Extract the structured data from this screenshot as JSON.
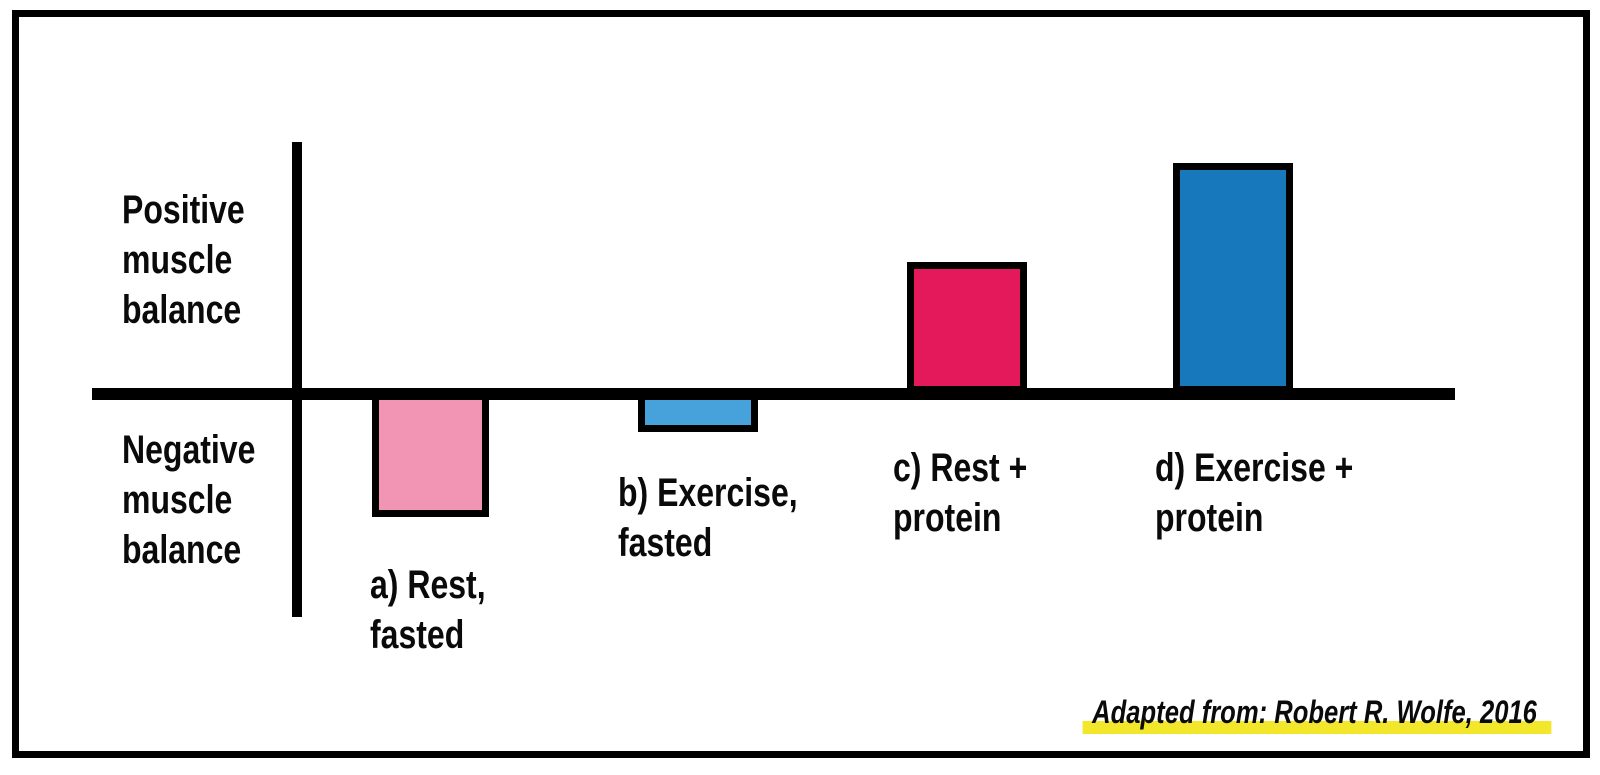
{
  "chart_data": {
    "type": "bar",
    "title": "",
    "orientation": "vertical",
    "baseline": 0,
    "ylim": [
      -0.7,
      1.15
    ],
    "value_scale": "relative units (no numeric ticks shown); tallest bar d = 1.0",
    "grid": false,
    "legend": false,
    "y_axis": {
      "positive_label": "Positive\nmuscle\nbalance",
      "negative_label": "Negative\nmuscle\nbalance"
    },
    "categories": [
      "a) Rest, fasted",
      "b) Exercise, fasted",
      "c) Rest + protein",
      "d) Exercise + protein"
    ],
    "values": [
      -0.54,
      -0.17,
      0.57,
      1.0
    ],
    "bars": [
      {
        "key": "a",
        "label": "a) Rest,\nfasted",
        "value": -0.54,
        "color": "#F294B4"
      },
      {
        "key": "b",
        "label": "b) Exercise,\nfasted",
        "value": -0.17,
        "color": "#47A2DC"
      },
      {
        "key": "c",
        "label": "c) Rest +\nprotein",
        "value": 0.57,
        "color": "#E4195C"
      },
      {
        "key": "d",
        "label": "d) Exercise +\nprotein",
        "value": 1.0,
        "color": "#1878BC"
      }
    ],
    "axis_color": "#000000"
  },
  "attribution": {
    "text": "Adapted from: Robert R. Wolfe, 2016",
    "highlight_color": "#F2E72B"
  },
  "frame": {
    "border_color": "#000000"
  }
}
